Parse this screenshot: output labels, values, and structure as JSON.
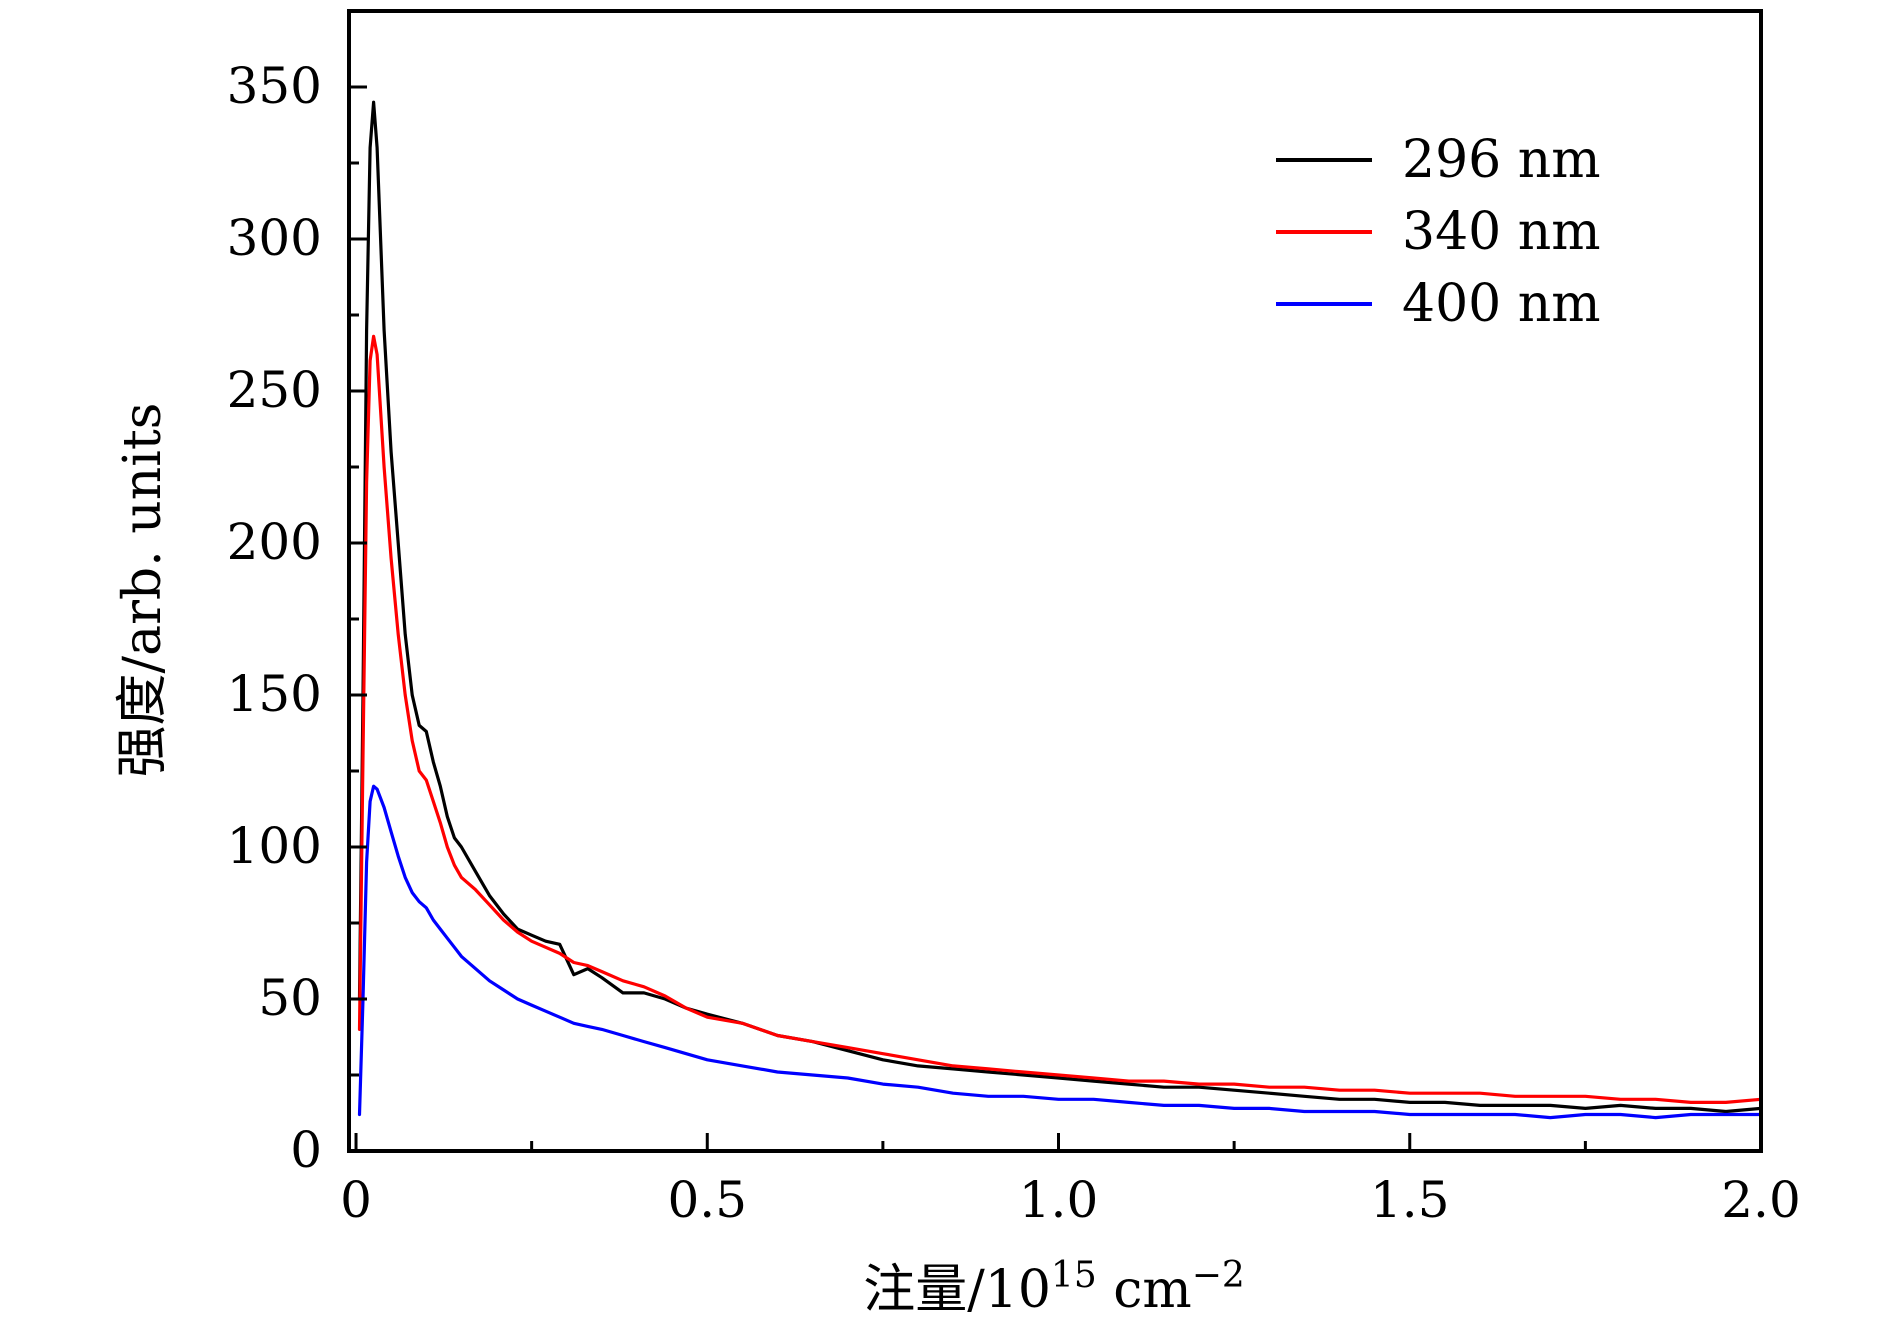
{
  "chart_data": {
    "type": "line",
    "title": "",
    "xlabel": {
      "main": "注量/10",
      "exp1": "15",
      "unit": " cm",
      "exp2": "−2"
    },
    "ylabel": "强度/arb. units",
    "xlim": [
      -0.01,
      2.0
    ],
    "ylim": [
      0,
      375
    ],
    "xticks": [
      0,
      0.5,
      1.0,
      1.5,
      2.0
    ],
    "xtick_labels": [
      "0",
      "0.5",
      "1.0",
      "1.5",
      "2.0"
    ],
    "yticks": [
      0,
      50,
      100,
      150,
      200,
      250,
      300,
      350
    ],
    "ytick_labels": [
      "0",
      "50",
      "100",
      "150",
      "200",
      "250",
      "300",
      "350"
    ],
    "grid": false,
    "legend_position": "top-right",
    "series": [
      {
        "name": "296 nm",
        "color": "#000000",
        "x": [
          0.005,
          0.01,
          0.015,
          0.02,
          0.025,
          0.03,
          0.04,
          0.05,
          0.06,
          0.07,
          0.08,
          0.09,
          0.1,
          0.11,
          0.12,
          0.13,
          0.14,
          0.15,
          0.17,
          0.19,
          0.21,
          0.23,
          0.25,
          0.27,
          0.29,
          0.31,
          0.33,
          0.35,
          0.38,
          0.41,
          0.44,
          0.47,
          0.5,
          0.55,
          0.6,
          0.65,
          0.7,
          0.75,
          0.8,
          0.85,
          0.9,
          0.95,
          1.0,
          1.05,
          1.1,
          1.15,
          1.2,
          1.25,
          1.3,
          1.35,
          1.4,
          1.45,
          1.5,
          1.55,
          1.6,
          1.65,
          1.7,
          1.75,
          1.8,
          1.85,
          1.9,
          1.95,
          2.0
        ],
        "y": [
          50,
          150,
          270,
          330,
          345,
          330,
          270,
          230,
          200,
          170,
          150,
          140,
          138,
          128,
          120,
          110,
          103,
          100,
          92,
          84,
          78,
          73,
          71,
          69,
          68,
          58,
          60,
          57,
          52,
          52,
          50,
          47,
          45,
          42,
          38,
          36,
          33,
          30,
          28,
          27,
          26,
          25,
          24,
          23,
          22,
          21,
          21,
          20,
          19,
          18,
          17,
          17,
          16,
          16,
          15,
          15,
          15,
          14,
          15,
          14,
          14,
          13,
          14
        ]
      },
      {
        "name": "340 nm",
        "color": "#ff0000",
        "x": [
          0.005,
          0.01,
          0.015,
          0.02,
          0.025,
          0.03,
          0.04,
          0.05,
          0.06,
          0.07,
          0.08,
          0.09,
          0.1,
          0.11,
          0.12,
          0.13,
          0.14,
          0.15,
          0.17,
          0.19,
          0.21,
          0.23,
          0.25,
          0.27,
          0.29,
          0.31,
          0.33,
          0.35,
          0.38,
          0.41,
          0.44,
          0.47,
          0.5,
          0.55,
          0.6,
          0.65,
          0.7,
          0.75,
          0.8,
          0.85,
          0.9,
          0.95,
          1.0,
          1.05,
          1.1,
          1.15,
          1.2,
          1.25,
          1.3,
          1.35,
          1.4,
          1.45,
          1.5,
          1.55,
          1.6,
          1.65,
          1.7,
          1.75,
          1.8,
          1.85,
          1.9,
          1.95,
          2.0
        ],
        "y": [
          40,
          130,
          220,
          260,
          268,
          262,
          225,
          195,
          170,
          150,
          135,
          125,
          122,
          115,
          108,
          100,
          94,
          90,
          86,
          81,
          76,
          72,
          69,
          67,
          65,
          62,
          61,
          59,
          56,
          54,
          51,
          47,
          44,
          42,
          38,
          36,
          34,
          32,
          30,
          28,
          27,
          26,
          25,
          24,
          23,
          23,
          22,
          22,
          21,
          21,
          20,
          20,
          19,
          19,
          19,
          18,
          18,
          18,
          17,
          17,
          16,
          16,
          17
        ]
      },
      {
        "name": "400 nm",
        "color": "#0000ff",
        "x": [
          0.005,
          0.01,
          0.015,
          0.02,
          0.025,
          0.03,
          0.04,
          0.05,
          0.06,
          0.07,
          0.08,
          0.09,
          0.1,
          0.11,
          0.12,
          0.13,
          0.14,
          0.15,
          0.17,
          0.19,
          0.21,
          0.23,
          0.25,
          0.27,
          0.29,
          0.31,
          0.33,
          0.35,
          0.38,
          0.41,
          0.44,
          0.47,
          0.5,
          0.55,
          0.6,
          0.65,
          0.7,
          0.75,
          0.8,
          0.85,
          0.9,
          0.95,
          1.0,
          1.05,
          1.1,
          1.15,
          1.2,
          1.25,
          1.3,
          1.35,
          1.4,
          1.45,
          1.5,
          1.55,
          1.6,
          1.65,
          1.7,
          1.75,
          1.8,
          1.85,
          1.9,
          1.95,
          2.0
        ],
        "y": [
          12,
          50,
          95,
          115,
          120,
          119,
          113,
          105,
          97,
          90,
          85,
          82,
          80,
          76,
          73,
          70,
          67,
          64,
          60,
          56,
          53,
          50,
          48,
          46,
          44,
          42,
          41,
          40,
          38,
          36,
          34,
          32,
          30,
          28,
          26,
          25,
          24,
          22,
          21,
          19,
          18,
          18,
          17,
          17,
          16,
          15,
          15,
          14,
          14,
          13,
          13,
          13,
          12,
          12,
          12,
          12,
          11,
          12,
          12,
          11,
          12,
          12,
          12
        ]
      }
    ]
  }
}
